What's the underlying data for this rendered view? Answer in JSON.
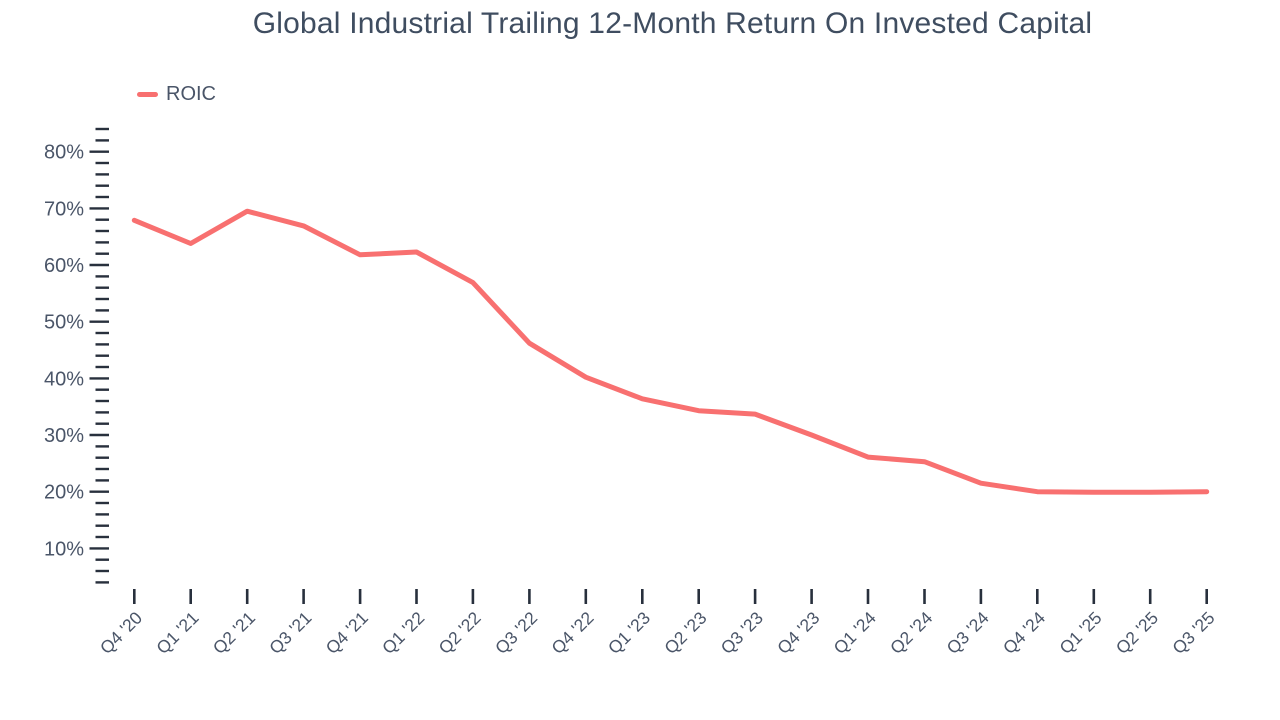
{
  "chart_data": {
    "type": "line",
    "title": "Global Industrial Trailing 12-Month Return On Invested Capital",
    "xlabel": "",
    "ylabel": "",
    "grid": false,
    "legend_position": "top-left",
    "categories": [
      "Q4 '20",
      "Q1 '21",
      "Q2 '21",
      "Q3 '21",
      "Q4 '21",
      "Q1 '22",
      "Q2 '22",
      "Q3 '22",
      "Q4 '22",
      "Q1 '23",
      "Q2 '23",
      "Q3 '23",
      "Q4 '23",
      "Q1 '24",
      "Q2 '24",
      "Q3 '24",
      "Q4 '24",
      "Q1 '25",
      "Q2 '25",
      "Q3 '25"
    ],
    "series": [
      {
        "name": "ROIC",
        "color": "#F87070",
        "values": [
          67.9,
          63.8,
          69.5,
          66.9,
          61.8,
          62.3,
          56.9,
          46.2,
          40.2,
          36.4,
          34.3,
          33.7,
          30.0,
          26.1,
          25.3,
          21.5,
          20.0,
          19.9,
          19.9,
          20.0
        ]
      }
    ],
    "y_axis": {
      "unit": "%",
      "range": [
        3,
        85
      ],
      "tick_min": 4,
      "tick_max": 84,
      "minor_step": 2,
      "major_step": 10,
      "major_tick_labels": [
        "10%",
        "20%",
        "30%",
        "40%",
        "50%",
        "60%",
        "70%",
        "80%"
      ]
    }
  },
  "legend": {
    "items": [
      {
        "label": "ROIC",
        "color": "#F87070"
      }
    ]
  },
  "colors": {
    "background": "#ffffff",
    "title": "#3f4d60",
    "axis_label": "#4a5568",
    "axis_tick": "#28303d",
    "line": "#F87070"
  }
}
